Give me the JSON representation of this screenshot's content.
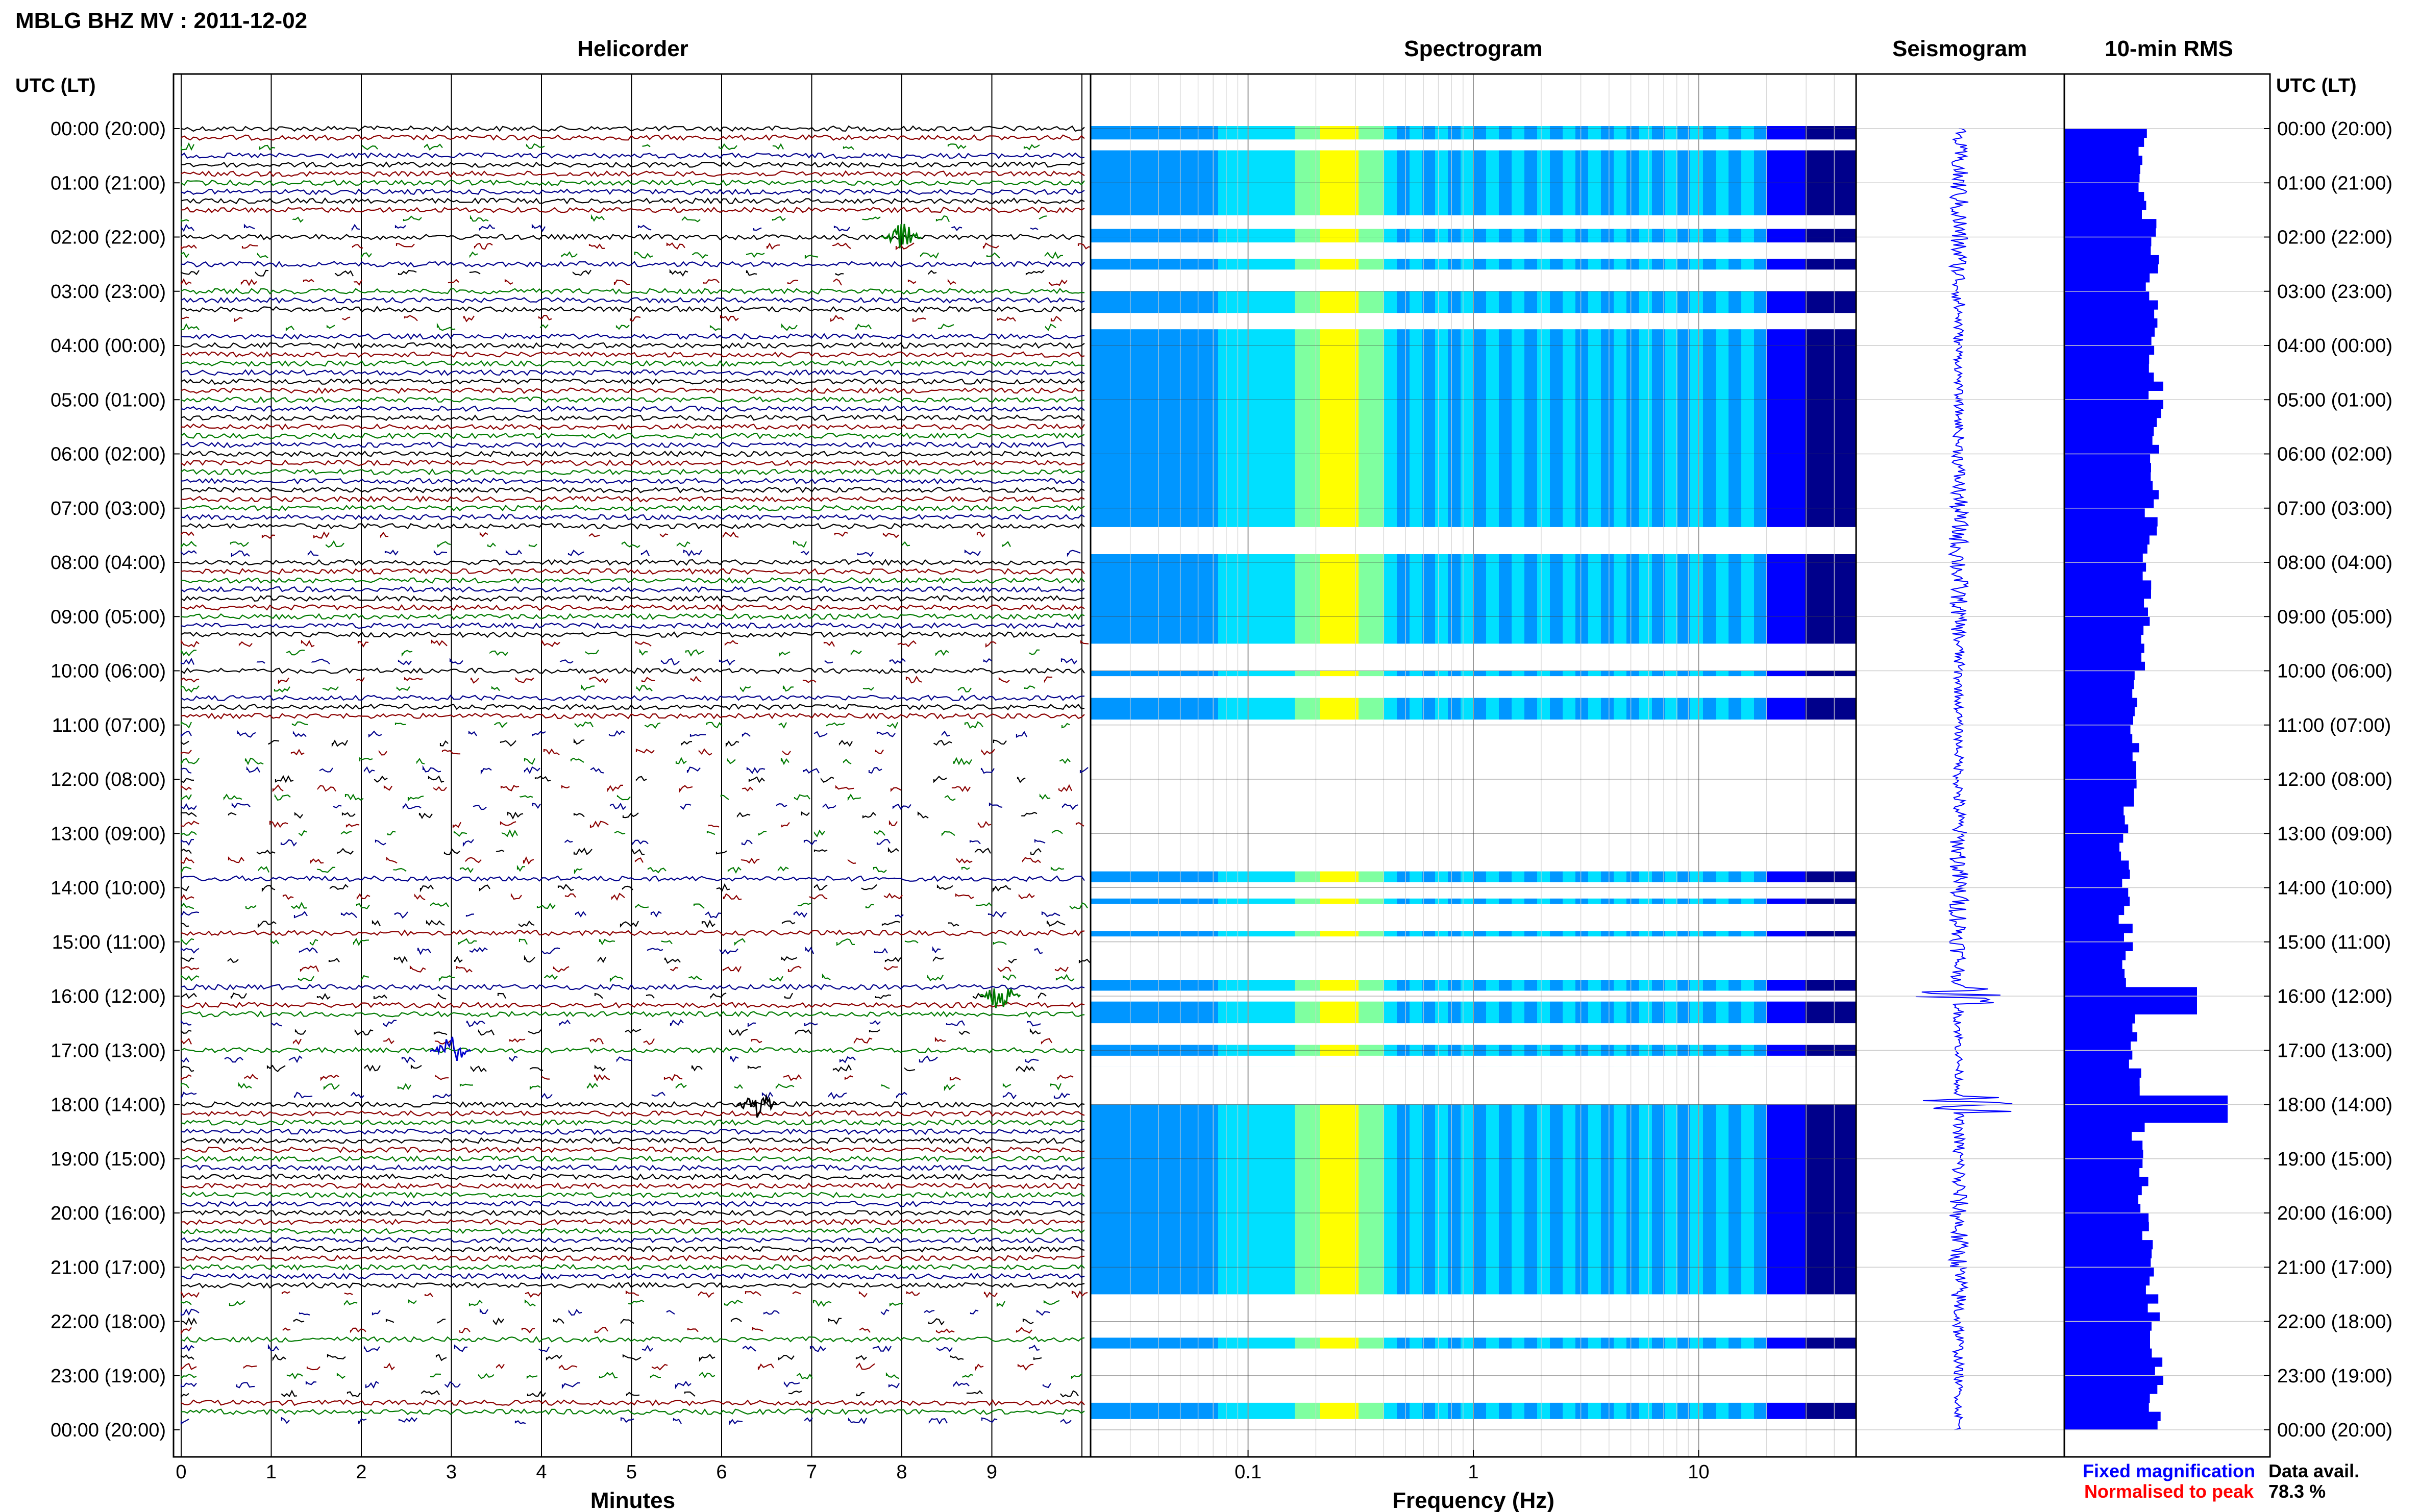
{
  "title": "MBLG BHZ MV : 2011-12-02",
  "panels": {
    "helicorder": "Helicorder",
    "spectrogram": "Spectrogram",
    "seismogram": "Seismogram",
    "rms": "10-min RMS"
  },
  "axis_header_left": "UTC (LT)",
  "axis_header_right": "UTC (LT)",
  "time_labels": [
    "00:00 (20:00)",
    "01:00 (21:00)",
    "02:00 (22:00)",
    "03:00 (23:00)",
    "04:00 (00:00)",
    "05:00 (01:00)",
    "06:00 (02:00)",
    "07:00 (03:00)",
    "08:00 (04:00)",
    "09:00 (05:00)",
    "10:00 (06:00)",
    "11:00 (07:00)",
    "12:00 (08:00)",
    "13:00 (09:00)",
    "14:00 (10:00)",
    "15:00 (11:00)",
    "16:00 (12:00)",
    "17:00 (13:00)",
    "18:00 (14:00)",
    "19:00 (15:00)",
    "20:00 (16:00)",
    "21:00 (17:00)",
    "22:00 (18:00)",
    "23:00 (19:00)",
    "00:00 (20:00)"
  ],
  "legend": {
    "fixed": "Fixed magnification",
    "normalised": "Normalised to peak",
    "fixed_color": "#0000ff",
    "normalised_color": "#ff0000"
  },
  "data_avail_label": "Data avail.",
  "data_avail_value": "78.3 %",
  "colors": {
    "trace_cycle": [
      "#000000",
      "#8b0000",
      "#007a00",
      "#00008b"
    ],
    "spectrogram_scale": [
      "#00008b",
      "#0000ff",
      "#0096ff",
      "#00e0ff",
      "#7fffa0",
      "#ffff00"
    ],
    "rms_bar": "#0000ff"
  },
  "chart_data": [
    {
      "type": "line",
      "name": "helicorder",
      "xlabel": "Minutes",
      "x_ticks": [
        "0",
        "1",
        "2",
        "3",
        "4",
        "5",
        "6",
        "7",
        "8",
        "9"
      ],
      "xlim": [
        0,
        10
      ],
      "rows_per_hour": 6,
      "hours": 24,
      "notable_events": [
        {
          "hour": 2,
          "minute": 8.0,
          "label": "green burst"
        },
        {
          "hour": 16,
          "minute": 9.1,
          "label": "green burst"
        },
        {
          "hour": 17,
          "minute": 3.0,
          "label": "blue spikes"
        },
        {
          "hour": 18,
          "minute": 6.4,
          "label": "black burst"
        }
      ]
    },
    {
      "type": "heatmap",
      "name": "spectrogram",
      "xlabel": "Frequency (Hz)",
      "x_scale": "log",
      "xlim": [
        0.02,
        50
      ],
      "x_ticks": [
        "0.1",
        "1",
        "10"
      ],
      "peak_band_hz": [
        0.2,
        0.3
      ],
      "data_gaps_utc": [
        [
          0.2,
          0.4
        ],
        [
          1.6,
          1.85
        ],
        [
          2.1,
          2.4
        ],
        [
          2.6,
          3.0
        ],
        [
          3.4,
          3.7
        ],
        [
          7.35,
          7.85
        ],
        [
          9.5,
          10.0
        ],
        [
          10.1,
          10.5
        ],
        [
          10.9,
          13.7
        ],
        [
          13.9,
          14.2
        ],
        [
          14.3,
          14.8
        ],
        [
          14.9,
          15.7
        ],
        [
          15.9,
          16.1
        ],
        [
          16.5,
          16.9
        ],
        [
          17.1,
          17.3
        ],
        [
          17.3,
          18.0
        ],
        [
          21.5,
          22.3
        ],
        [
          22.5,
          23.5
        ],
        [
          23.8,
          24.2
        ]
      ]
    },
    {
      "type": "line",
      "name": "seismogram",
      "ylim": [
        0,
        24
      ]
    },
    {
      "type": "bar",
      "name": "10-min RMS",
      "orientation": "horizontal",
      "ylim": [
        0,
        24
      ],
      "peaks_utc": [
        [
          16.0,
          "high"
        ],
        [
          18.0,
          "highest"
        ]
      ]
    }
  ]
}
